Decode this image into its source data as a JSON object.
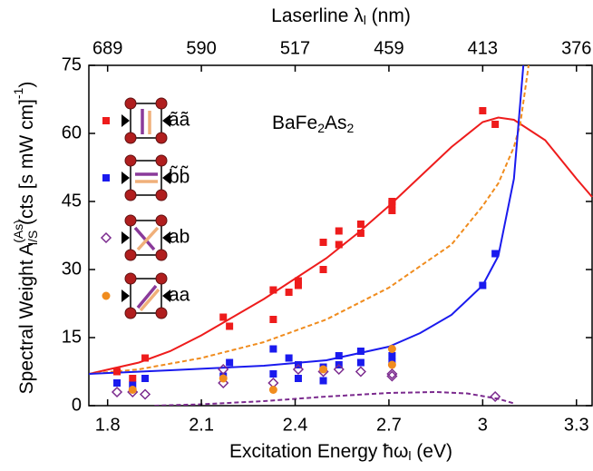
{
  "chart_data": {
    "type": "scatter",
    "xlabel": [
      "Excitation Energy  ħω",
      "l",
      " (eV)"
    ],
    "ylabel": [
      "Spectral Weight  A",
      "(As)",
      "l/S",
      "  (cts [s mW cm]",
      "-1",
      ")"
    ],
    "x2label": [
      "Laserline  λ",
      "l",
      " (nm)"
    ],
    "annotation": [
      "BaFe",
      "2",
      "As",
      "2"
    ],
    "xlim": [
      1.74,
      3.35
    ],
    "ylim": [
      0,
      75
    ],
    "xticks": [
      1.8,
      2.1,
      2.4,
      2.7,
      3.0,
      3.3
    ],
    "yticks": [
      0,
      15,
      30,
      45,
      60,
      75
    ],
    "x2ticks": [
      {
        "value": 1.8,
        "label": "689"
      },
      {
        "value": 2.1,
        "label": "590"
      },
      {
        "value": 2.4,
        "label": "517"
      },
      {
        "value": 2.7,
        "label": "459"
      },
      {
        "value": 3.0,
        "label": "413"
      },
      {
        "value": 3.3,
        "label": "376"
      }
    ],
    "series": [
      {
        "name": "ãã",
        "color": "#ee1c1c",
        "marker": "square",
        "x": [
          1.83,
          1.88,
          1.92,
          2.17,
          2.19,
          2.33,
          2.33,
          2.38,
          2.41,
          2.41,
          2.49,
          2.49,
          2.54,
          2.54,
          2.61,
          2.61,
          2.71,
          2.71,
          2.71,
          3.0,
          3.04
        ],
        "values": [
          7.5,
          6,
          10.5,
          19.5,
          17.5,
          19,
          25.5,
          25,
          26.5,
          27.5,
          30,
          36,
          38.5,
          35.5,
          38,
          40,
          43,
          44.5,
          45,
          65,
          62
        ]
      },
      {
        "name": "b̃b̃",
        "color": "#1a1aee",
        "marker": "square",
        "x": [
          1.83,
          1.88,
          1.92,
          2.17,
          2.19,
          2.33,
          2.33,
          2.38,
          2.41,
          2.41,
          2.49,
          2.49,
          2.54,
          2.54,
          2.61,
          2.61,
          2.71,
          2.71,
          3.0,
          3.04
        ],
        "values": [
          5,
          4.5,
          6,
          6.5,
          9.5,
          12.5,
          7,
          10.5,
          6,
          9,
          5.5,
          8.5,
          11,
          9,
          9.5,
          12,
          9.5,
          11,
          26.5,
          33.5
        ]
      },
      {
        "name": "ab",
        "color": "#7b2a8e",
        "marker": "diamond",
        "x": [
          1.83,
          1.88,
          1.92,
          2.17,
          2.17,
          2.33,
          2.41,
          2.49,
          2.54,
          2.61,
          2.71,
          2.71,
          3.04
        ],
        "values": [
          3,
          3,
          2.5,
          8,
          5,
          5,
          8,
          7.5,
          8,
          7.5,
          6.5,
          7,
          2
        ]
      },
      {
        "name": "aa",
        "color": "#f08c1e",
        "marker": "circle",
        "x": [
          1.88,
          2.17,
          2.33,
          2.49,
          2.71,
          2.71
        ],
        "values": [
          3.5,
          6,
          3.5,
          8,
          12.5,
          9
        ]
      },
      {
        "color": "#ee1c1c",
        "style": "solid",
        "x": [
          1.74,
          1.9,
          2.0,
          2.1,
          2.2,
          2.3,
          2.4,
          2.5,
          2.6,
          2.7,
          2.8,
          2.9,
          3.0,
          3.05,
          3.1,
          3.2,
          3.3,
          3.35
        ],
        "values": [
          7,
          9.5,
          12,
          15.5,
          19.5,
          23.5,
          28,
          32.5,
          38,
          44,
          50.5,
          57,
          62.5,
          63.5,
          63,
          58.5,
          50,
          46
        ]
      },
      {
        "color": "#f08c1e",
        "style": "dashed",
        "x": [
          1.74,
          1.9,
          2.1,
          2.3,
          2.5,
          2.7,
          2.9,
          3.0,
          3.05,
          3.1,
          3.12,
          3.147
        ],
        "values": [
          7,
          8,
          10.5,
          14,
          19,
          26,
          35.5,
          44,
          49,
          57,
          62,
          75
        ]
      },
      {
        "color": "#1a1aee",
        "style": "solid",
        "x": [
          1.74,
          2.0,
          2.3,
          2.5,
          2.7,
          2.8,
          2.9,
          3.0,
          3.05,
          3.1,
          3.13
        ],
        "values": [
          7,
          7.8,
          8.8,
          10,
          13,
          16,
          20,
          26.5,
          33,
          50,
          75
        ]
      },
      {
        "color": "#7b2a8e",
        "style": "dashed",
        "x": [
          1.95,
          2.1,
          2.3,
          2.5,
          2.7,
          2.85,
          2.95,
          3.05,
          3.1
        ],
        "values": [
          0,
          0.3,
          1,
          2,
          2.8,
          3,
          2.7,
          1.5,
          0.5
        ]
      }
    ]
  }
}
